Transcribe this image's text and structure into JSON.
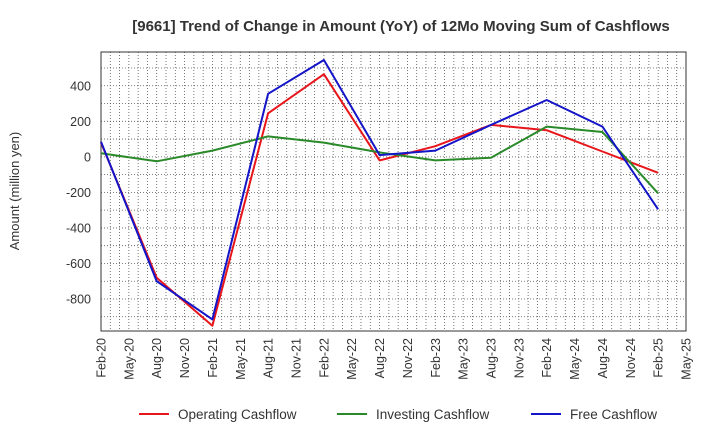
{
  "chart_data": {
    "type": "line",
    "title": "[9661]  Trend of Change in Amount (YoY) of 12Mo Moving Sum of Cashflows",
    "xlabel": "",
    "ylabel": "Amount (million yen)",
    "ylim": [
      -980,
      590
    ],
    "yticks": [
      400,
      200,
      0,
      -200,
      -400,
      -600,
      -800
    ],
    "x_tick_labels": [
      "Feb-20",
      "May-20",
      "Aug-20",
      "Nov-20",
      "Feb-21",
      "May-21",
      "Aug-21",
      "Nov-21",
      "Feb-22",
      "May-22",
      "Aug-22",
      "Nov-22",
      "Feb-23",
      "May-23",
      "Aug-23",
      "Nov-23",
      "Feb-24",
      "May-24",
      "Aug-24",
      "Nov-24",
      "Feb-25",
      "May-25"
    ],
    "grid": true,
    "legend_position": "bottom",
    "series": [
      {
        "name": "Operating Cashflow",
        "color": "#e8161b",
        "points": [
          [
            0,
            80
          ],
          [
            6,
            -680
          ],
          [
            12,
            -950
          ],
          [
            18,
            245
          ],
          [
            24,
            465
          ],
          [
            30,
            -20
          ],
          [
            36,
            60
          ],
          [
            42,
            180
          ],
          [
            48,
            150
          ],
          [
            54,
            30
          ],
          [
            60,
            -90
          ]
        ]
      },
      {
        "name": "Investing Cashflow",
        "color": "#2a8a2a",
        "points": [
          [
            0,
            20
          ],
          [
            6,
            -25
          ],
          [
            12,
            35
          ],
          [
            18,
            115
          ],
          [
            24,
            80
          ],
          [
            30,
            25
          ],
          [
            36,
            -20
          ],
          [
            42,
            -5
          ],
          [
            48,
            170
          ],
          [
            54,
            140
          ],
          [
            60,
            -205
          ]
        ]
      },
      {
        "name": "Free Cashflow",
        "color": "#1414c8",
        "points": [
          [
            0,
            85
          ],
          [
            6,
            -700
          ],
          [
            12,
            -915
          ],
          [
            18,
            355
          ],
          [
            24,
            545
          ],
          [
            30,
            10
          ],
          [
            36,
            35
          ],
          [
            42,
            180
          ],
          [
            48,
            320
          ],
          [
            54,
            170
          ],
          [
            60,
            -295
          ]
        ]
      }
    ]
  }
}
